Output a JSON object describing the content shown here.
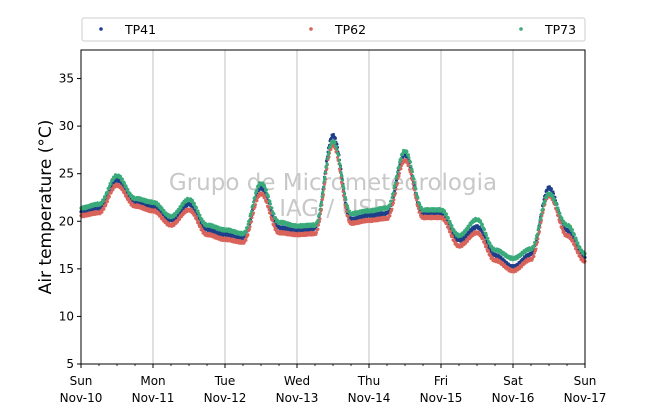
{
  "chart_data": {
    "type": "scatter",
    "title": "",
    "ylabel": "Air temperature (°C)",
    "ylim": [
      5,
      38
    ],
    "yticks": [
      5,
      10,
      15,
      20,
      25,
      30,
      35
    ],
    "xlim": [
      "2024-11-10T00:00",
      "2024-11-17T00:00"
    ],
    "xticks": [
      {
        "x": "2024-11-10T00:00",
        "line1": "Sun",
        "line2": "Nov-10"
      },
      {
        "x": "2024-11-11T00:00",
        "line1": "Mon",
        "line2": "Nov-11"
      },
      {
        "x": "2024-11-12T00:00",
        "line1": "Tue",
        "line2": "Nov-12"
      },
      {
        "x": "2024-11-13T00:00",
        "line1": "Wed",
        "line2": "Nov-13"
      },
      {
        "x": "2024-11-14T00:00",
        "line1": "Thu",
        "line2": "Nov-14"
      },
      {
        "x": "2024-11-15T00:00",
        "line1": "Fri",
        "line2": "Nov-15"
      },
      {
        "x": "2024-11-16T00:00",
        "line1": "Sat",
        "line2": "Nov-16"
      },
      {
        "x": "2024-11-17T00:00",
        "line1": "Sun",
        "line2": "Nov-17"
      }
    ],
    "grid": "vertical",
    "legend_position": "top",
    "watermark": [
      "Grupo de Micrometeorologia",
      "IAG / USP"
    ],
    "x": [
      "2024-11-10T00:00",
      "2024-11-10T06:00",
      "2024-11-10T12:00",
      "2024-11-10T18:00",
      "2024-11-11T00:00",
      "2024-11-11T06:00",
      "2024-11-11T12:00",
      "2024-11-11T18:00",
      "2024-11-12T00:00",
      "2024-11-12T06:00",
      "2024-11-12T12:00",
      "2024-11-12T18:00",
      "2024-11-13T00:00",
      "2024-11-13T06:00",
      "2024-11-13T12:00",
      "2024-11-13T18:00",
      "2024-11-14T00:00",
      "2024-11-14T06:00",
      "2024-11-14T12:00",
      "2024-11-14T18:00",
      "2024-11-15T00:00",
      "2024-11-15T06:00",
      "2024-11-15T12:00",
      "2024-11-15T18:00",
      "2024-11-16T00:00",
      "2024-11-16T06:00",
      "2024-11-16T12:00",
      "2024-11-16T18:00",
      "2024-11-17T00:00"
    ],
    "series": [
      {
        "name": "TP41",
        "color": "#1f3f8a",
        "values": [
          21.0,
          21.3,
          24.3,
          22.0,
          21.5,
          20.1,
          21.8,
          19.1,
          18.6,
          18.2,
          23.5,
          19.3,
          19.0,
          19.2,
          29.0,
          20.2,
          20.6,
          20.8,
          27.0,
          20.8,
          20.8,
          18.0,
          19.4,
          16.4,
          15.2,
          16.5,
          23.5,
          19.0,
          16.2
        ]
      },
      {
        "name": "TP62",
        "color": "#d9635a",
        "values": [
          20.6,
          20.9,
          23.8,
          21.6,
          21.1,
          19.6,
          21.2,
          18.6,
          18.1,
          17.8,
          22.9,
          18.8,
          18.6,
          18.7,
          28.0,
          19.8,
          20.1,
          20.3,
          26.4,
          20.4,
          20.4,
          17.4,
          18.8,
          15.9,
          14.8,
          16.0,
          22.7,
          18.5,
          15.8
        ]
      },
      {
        "name": "TP73",
        "color": "#3aaa7a",
        "values": [
          21.4,
          21.8,
          24.8,
          22.4,
          22.0,
          20.5,
          22.3,
          19.6,
          19.1,
          18.7,
          24.0,
          19.9,
          19.5,
          19.6,
          28.4,
          20.8,
          21.1,
          21.4,
          27.4,
          21.2,
          21.2,
          18.5,
          20.2,
          17.0,
          16.1,
          17.1,
          22.9,
          19.6,
          16.6
        ]
      }
    ]
  }
}
